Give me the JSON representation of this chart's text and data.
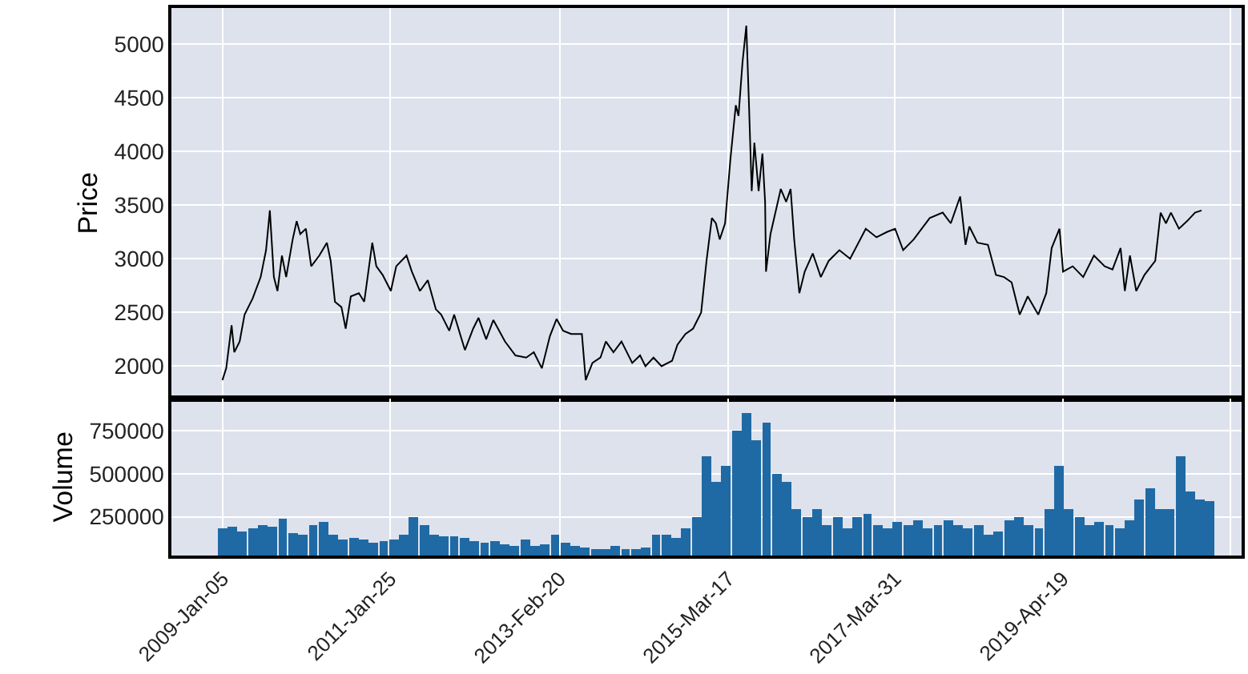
{
  "chart_data": [
    {
      "type": "line",
      "ylabel": "Price",
      "grid": true,
      "tick_labels": "y",
      "marker": "none",
      "line_style": "solid",
      "xlim": [
        "2008-05-22",
        "2021-06-27"
      ],
      "xticks": [
        {
          "value": "2009-01-05",
          "label": null
        },
        {
          "value": "2011-01-25",
          "label": null
        },
        {
          "value": "2013-02-20",
          "label": null
        },
        {
          "value": "2015-03-17",
          "label": null
        },
        {
          "value": "2017-03-31",
          "label": null
        },
        {
          "value": "2019-04-19",
          "label": null
        },
        {
          "value": "2021-05-08",
          "label": null
        }
      ],
      "ylim": [
        1700,
        5335
      ],
      "yticks": [
        2000,
        2500,
        3000,
        3500,
        4000,
        4500,
        5000
      ],
      "x": [
        "2009-01-05",
        "2009-01-22",
        "2009-02-15",
        "2009-02-27",
        "2009-03-23",
        "2009-04-14",
        "2009-05-20",
        "2009-06-25",
        "2009-07-19",
        "2009-08-05",
        "2009-08-23",
        "2009-09-08",
        "2009-09-28",
        "2009-10-17",
        "2009-11-15",
        "2009-12-03",
        "2009-12-19",
        "2010-01-13",
        "2010-02-06",
        "2010-03-14",
        "2010-04-17",
        "2010-05-04",
        "2010-05-23",
        "2010-06-21",
        "2010-07-10",
        "2010-08-02",
        "2010-09-07",
        "2010-10-01",
        "2010-11-06",
        "2010-11-24",
        "2010-12-22",
        "2011-01-28",
        "2011-02-21",
        "2011-04-08",
        "2011-05-02",
        "2011-06-07",
        "2011-07-12",
        "2011-08-17",
        "2011-09-10",
        "2011-10-16",
        "2011-11-07",
        "2011-12-25",
        "2012-01-31",
        "2012-02-24",
        "2012-03-29",
        "2012-04-30",
        "2012-06-21",
        "2012-08-07",
        "2012-09-24",
        "2012-10-28",
        "2012-12-03",
        "2013-01-08",
        "2013-02-07",
        "2013-03-08",
        "2013-04-13",
        "2013-05-31",
        "2013-06-17",
        "2013-07-17",
        "2013-08-22",
        "2013-09-15",
        "2013-10-19",
        "2013-11-24",
        "2014-01-11",
        "2014-02-15",
        "2014-03-11",
        "2014-04-16",
        "2014-05-22",
        "2014-07-08",
        "2014-08-01",
        "2014-09-06",
        "2014-10-10",
        "2014-11-15",
        "2014-12-09",
        "2015-01-02",
        "2015-01-20",
        "2015-02-06",
        "2015-03-02",
        "2015-03-26",
        "2015-04-19",
        "2015-05-01",
        "2015-05-19",
        "2015-06-05",
        "2015-06-17",
        "2015-06-29",
        "2015-07-11",
        "2015-07-30",
        "2015-08-16",
        "2015-08-28",
        "2015-09-01",
        "2015-09-21",
        "2015-10-13",
        "2015-11-06",
        "2015-11-30",
        "2015-12-20",
        "2016-01-05",
        "2016-01-28",
        "2016-02-21",
        "2016-03-28",
        "2016-05-03",
        "2016-06-07",
        "2016-07-25",
        "2016-09-11",
        "2016-11-20",
        "2017-01-07",
        "2017-02-23",
        "2017-03-31",
        "2017-05-06",
        "2017-06-22",
        "2017-09-02",
        "2017-10-30",
        "2017-12-05",
        "2018-01-16",
        "2018-02-09",
        "2018-02-26",
        "2018-04-03",
        "2018-05-20",
        "2018-06-25",
        "2018-07-31",
        "2018-09-03",
        "2018-10-09",
        "2018-11-14",
        "2018-12-31",
        "2019-02-05",
        "2019-03-01",
        "2019-04-05",
        "2019-04-21",
        "2019-06-03",
        "2019-07-20",
        "2019-09-06",
        "2019-10-24",
        "2019-11-28",
        "2020-01-03",
        "2020-01-22",
        "2020-02-14",
        "2020-03-13",
        "2020-04-19",
        "2020-06-06",
        "2020-06-30",
        "2020-07-24",
        "2020-08-15",
        "2020-09-20",
        "2020-10-26",
        "2020-12-01",
        "2020-12-30"
      ],
      "series": [
        {
          "color": "#000000",
          "values": [
            1870,
            1980,
            2380,
            2130,
            2230,
            2480,
            2630,
            2830,
            3080,
            3450,
            2830,
            2700,
            3030,
            2830,
            3180,
            3350,
            3230,
            3280,
            2930,
            3030,
            3150,
            2980,
            2600,
            2550,
            2350,
            2650,
            2680,
            2600,
            3150,
            2930,
            2850,
            2700,
            2930,
            3030,
            2880,
            2700,
            2800,
            2530,
            2480,
            2330,
            2480,
            2150,
            2350,
            2450,
            2250,
            2430,
            2230,
            2100,
            2080,
            2130,
            1980,
            2280,
            2440,
            2330,
            2300,
            2300,
            1870,
            2030,
            2080,
            2230,
            2130,
            2230,
            2030,
            2100,
            2000,
            2080,
            2000,
            2050,
            2200,
            2300,
            2350,
            2500,
            2980,
            3380,
            3330,
            3180,
            3330,
            3930,
            4430,
            4330,
            4830,
            5170,
            4430,
            3630,
            4080,
            3630,
            3980,
            3530,
            2880,
            3230,
            3430,
            3650,
            3530,
            3650,
            3180,
            2680,
            2880,
            3050,
            2830,
            2980,
            3080,
            3000,
            3280,
            3200,
            3250,
            3280,
            3080,
            3180,
            3380,
            3430,
            3330,
            3580,
            3130,
            3300,
            3150,
            3130,
            2850,
            2830,
            2780,
            2480,
            2650,
            2480,
            2680,
            3100,
            3280,
            2880,
            2930,
            2830,
            3030,
            2930,
            2900,
            3100,
            2700,
            3030,
            2700,
            2850,
            2980,
            3430,
            3330,
            3430,
            3280,
            3350,
            3430,
            3450
          ]
        }
      ]
    },
    {
      "type": "bar",
      "ylabel": "Volume",
      "grid": true,
      "xlim": [
        "2008-05-22",
        "2021-06-27"
      ],
      "xticks": [
        {
          "value": "2009-01-05",
          "label": "2009-Jan-05"
        },
        {
          "value": "2011-01-25",
          "label": "2011-Jan-25"
        },
        {
          "value": "2013-02-20",
          "label": "2013-Feb-20"
        },
        {
          "value": "2015-03-17",
          "label": "2015-Mar-17"
        },
        {
          "value": "2017-03-31",
          "label": "2017-Mar-31"
        },
        {
          "value": "2019-04-19",
          "label": "2019-Apr-19"
        },
        {
          "value": "2021-05-08",
          "label": null
        }
      ],
      "ylim": [
        25000,
        937000
      ],
      "yticks": [
        250000,
        500000,
        750000
      ],
      "x": [
        "2009-01-05",
        "2009-02-19",
        "2009-04-05",
        "2009-05-20",
        "2009-07-04",
        "2009-08-18",
        "2009-10-02",
        "2009-11-16",
        "2009-12-31",
        "2010-02-15",
        "2010-04-01",
        "2010-05-16",
        "2010-06-30",
        "2010-08-14",
        "2010-09-28",
        "2010-11-12",
        "2010-12-27",
        "2011-02-10",
        "2011-03-27",
        "2011-05-11",
        "2011-06-25",
        "2011-08-09",
        "2011-09-23",
        "2011-11-07",
        "2011-12-22",
        "2012-02-06",
        "2012-03-22",
        "2012-05-06",
        "2012-06-20",
        "2012-08-04",
        "2012-09-18",
        "2012-11-02",
        "2012-12-17",
        "2013-01-31",
        "2013-03-17",
        "2013-05-01",
        "2013-06-15",
        "2013-07-30",
        "2013-09-13",
        "2013-10-28",
        "2013-12-12",
        "2014-01-26",
        "2014-03-13",
        "2014-04-27",
        "2014-06-11",
        "2014-07-26",
        "2014-09-09",
        "2014-10-24",
        "2014-12-08",
        "2015-01-22",
        "2015-03-08",
        "2015-04-22",
        "2015-06-06",
        "2015-07-21",
        "2015-09-04",
        "2015-10-19",
        "2015-12-03",
        "2016-01-17",
        "2016-03-02",
        "2016-04-17",
        "2016-06-01",
        "2016-07-16",
        "2016-08-30",
        "2016-10-14",
        "2016-11-28",
        "2017-01-12",
        "2017-02-26",
        "2017-04-12",
        "2017-05-27",
        "2017-07-11",
        "2017-08-25",
        "2017-10-09",
        "2017-11-23",
        "2018-01-07",
        "2018-02-21",
        "2018-04-07",
        "2018-05-22",
        "2018-07-07",
        "2018-08-21",
        "2018-10-05",
        "2018-11-19",
        "2019-01-03",
        "2019-02-17",
        "2019-04-03",
        "2019-05-18",
        "2019-07-02",
        "2019-08-16",
        "2019-09-30",
        "2019-11-14",
        "2019-12-29",
        "2020-02-12",
        "2020-03-28",
        "2020-05-13",
        "2020-06-27",
        "2020-08-11",
        "2020-09-25",
        "2020-11-09",
        "2020-12-24",
        "2021-02-04"
      ],
      "series": [
        {
          "color": "#1f6aa5",
          "values": [
            180000,
            190000,
            170000,
            180000,
            200000,
            190000,
            240000,
            160000,
            150000,
            200000,
            220000,
            150000,
            120000,
            130000,
            120000,
            100000,
            110000,
            120000,
            150000,
            250000,
            200000,
            150000,
            140000,
            140000,
            130000,
            110000,
            100000,
            110000,
            90000,
            80000,
            120000,
            80000,
            90000,
            150000,
            100000,
            80000,
            70000,
            60000,
            60000,
            80000,
            60000,
            60000,
            70000,
            150000,
            150000,
            130000,
            180000,
            250000,
            600000,
            450000,
            550000,
            750000,
            850000,
            700000,
            800000,
            500000,
            450000,
            300000,
            250000,
            300000,
            200000,
            250000,
            180000,
            250000,
            270000,
            200000,
            180000,
            220000,
            200000,
            230000,
            180000,
            200000,
            230000,
            200000,
            180000,
            200000,
            150000,
            170000,
            230000,
            250000,
            200000,
            180000,
            300000,
            550000,
            300000,
            250000,
            200000,
            220000,
            200000,
            180000,
            230000,
            350000,
            420000,
            300000,
            300000,
            600000,
            400000,
            350000,
            340000
          ]
        }
      ]
    }
  ]
}
